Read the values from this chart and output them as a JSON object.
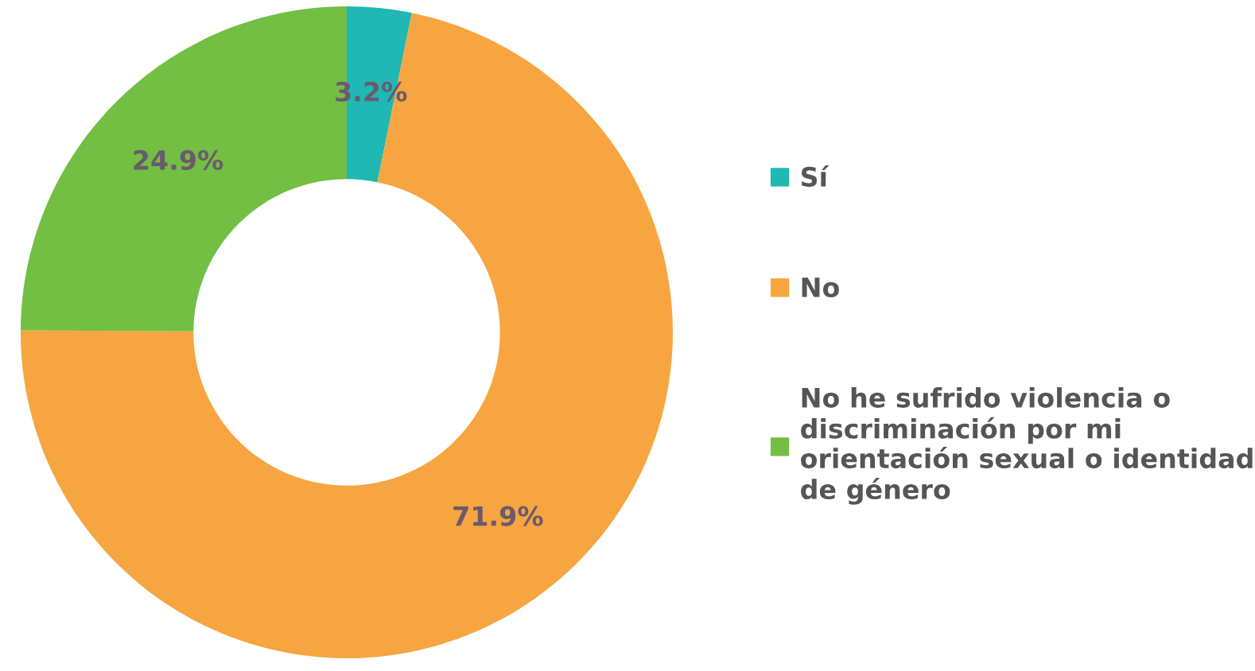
{
  "chart_data": {
    "type": "donut",
    "categories": [
      "Sí",
      "No",
      "No he sufrido violencia o discriminación por mi orientación sexual o identidad de género"
    ],
    "values": [
      3.2,
      71.9,
      24.9
    ],
    "colors": [
      "#1fb8b3",
      "#f7a540",
      "#72bf44"
    ],
    "value_labels": [
      "3.2%",
      "71.9%",
      "24.9%"
    ],
    "legend": "right"
  }
}
